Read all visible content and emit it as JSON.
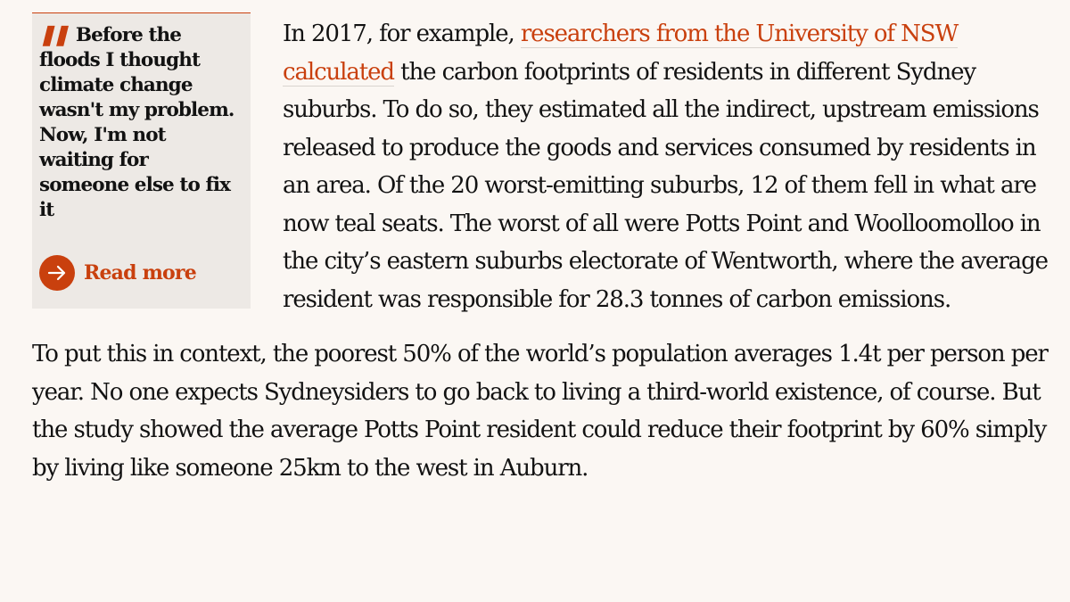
{
  "pullquote": {
    "text": "Before the floods I thought climate change wasn't my problem. Now, I'm not waiting for someone else to fix it",
    "read_more_label": "Read more",
    "quote_icon": "quote-marks-icon",
    "arrow_icon": "arrow-right-icon"
  },
  "paragraph1": {
    "lead": "In 2017, for example, ",
    "link_text": "researchers from the University of NSW calculated",
    "rest": " the carbon footprints of residents in different Sydney suburbs. To do so, they estimated all the indirect, upstream emissions released to produce the goods and services consumed by residents in an area. Of the 20 worst-emitting suburbs, 12 of them fell in what are now teal seats. The worst of all were Potts Point and Woolloomolloo in the city’s eastern suburbs electorate of Wentworth, where the average resident was responsible for 28.3 tonnes of carbon emissions."
  },
  "paragraph2": {
    "text": "To put this in context, the poorest 50% of the world’s population averages 1.4t per person per year. No one expects Sydneysiders to go back to living a third-world existence, of course. But the study showed the average Potts Point resident could reduce their footprint by 60% simply by living like someone 25km to the west in Auburn."
  },
  "colors": {
    "accent": "#c9400e",
    "background": "#fbf7f3",
    "quote_box": "#ede9e5",
    "text": "#121212"
  }
}
